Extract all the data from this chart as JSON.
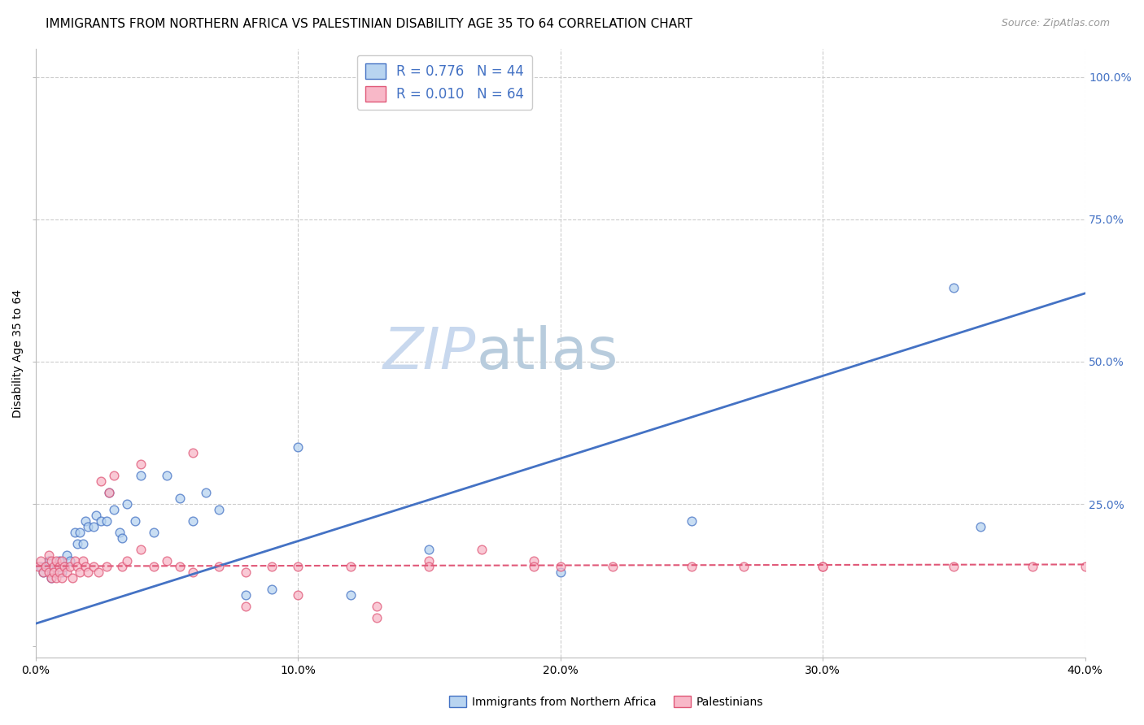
{
  "title": "IMMIGRANTS FROM NORTHERN AFRICA VS PALESTINIAN DISABILITY AGE 35 TO 64 CORRELATION CHART",
  "source": "Source: ZipAtlas.com",
  "ylabel": "Disability Age 35 to 64",
  "xlim": [
    0.0,
    0.4
  ],
  "ylim": [
    -0.02,
    1.05
  ],
  "xticks": [
    0.0,
    0.1,
    0.2,
    0.3,
    0.4
  ],
  "yticks": [
    0.0,
    0.25,
    0.5,
    0.75,
    1.0
  ],
  "xtick_labels": [
    "0.0%",
    "10.0%",
    "20.0%",
    "30.0%",
    "40.0%"
  ],
  "ytick_labels": [
    "",
    "25.0%",
    "50.0%",
    "75.0%",
    "100.0%"
  ],
  "watermark_zip": "ZIP",
  "watermark_atlas": "atlas",
  "series1_label": "Immigrants from Northern Africa",
  "series1_face_color": "#b8d4f0",
  "series1_edge_color": "#4472c4",
  "series1_line_color": "#4472c4",
  "series1_R": "0.776",
  "series1_N": "44",
  "series2_label": "Palestinians",
  "series2_face_color": "#f8b8c8",
  "series2_edge_color": "#e05878",
  "series2_line_color": "#e05878",
  "series2_R": "0.010",
  "series2_N": "64",
  "blue_x": [
    0.002,
    0.003,
    0.004,
    0.005,
    0.006,
    0.007,
    0.008,
    0.009,
    0.01,
    0.011,
    0.012,
    0.013,
    0.015,
    0.016,
    0.017,
    0.018,
    0.019,
    0.02,
    0.022,
    0.023,
    0.025,
    0.027,
    0.028,
    0.03,
    0.032,
    0.033,
    0.035,
    0.038,
    0.04,
    0.045,
    0.05,
    0.055,
    0.06,
    0.065,
    0.07,
    0.08,
    0.09,
    0.1,
    0.12,
    0.15,
    0.2,
    0.25,
    0.35,
    0.36
  ],
  "blue_y": [
    0.14,
    0.13,
    0.14,
    0.15,
    0.12,
    0.13,
    0.14,
    0.15,
    0.13,
    0.14,
    0.16,
    0.15,
    0.2,
    0.18,
    0.2,
    0.18,
    0.22,
    0.21,
    0.21,
    0.23,
    0.22,
    0.22,
    0.27,
    0.24,
    0.2,
    0.19,
    0.25,
    0.22,
    0.3,
    0.2,
    0.3,
    0.26,
    0.22,
    0.27,
    0.24,
    0.09,
    0.1,
    0.35,
    0.09,
    0.17,
    0.13,
    0.22,
    0.63,
    0.21
  ],
  "pink_x": [
    0.001,
    0.002,
    0.003,
    0.004,
    0.005,
    0.005,
    0.006,
    0.006,
    0.007,
    0.007,
    0.008,
    0.008,
    0.009,
    0.009,
    0.01,
    0.01,
    0.011,
    0.012,
    0.013,
    0.014,
    0.015,
    0.016,
    0.017,
    0.018,
    0.019,
    0.02,
    0.022,
    0.024,
    0.025,
    0.027,
    0.028,
    0.03,
    0.033,
    0.035,
    0.04,
    0.045,
    0.05,
    0.055,
    0.06,
    0.07,
    0.08,
    0.09,
    0.1,
    0.12,
    0.15,
    0.17,
    0.19,
    0.2,
    0.22,
    0.25,
    0.27,
    0.3,
    0.3,
    0.35,
    0.38,
    0.4,
    0.15,
    0.19,
    0.13,
    0.04,
    0.06,
    0.08,
    0.1,
    0.13
  ],
  "pink_y": [
    0.14,
    0.15,
    0.13,
    0.14,
    0.16,
    0.13,
    0.15,
    0.12,
    0.14,
    0.13,
    0.15,
    0.12,
    0.14,
    0.13,
    0.15,
    0.12,
    0.14,
    0.13,
    0.14,
    0.12,
    0.15,
    0.14,
    0.13,
    0.15,
    0.14,
    0.13,
    0.14,
    0.13,
    0.29,
    0.14,
    0.27,
    0.3,
    0.14,
    0.15,
    0.17,
    0.14,
    0.15,
    0.14,
    0.13,
    0.14,
    0.13,
    0.14,
    0.14,
    0.14,
    0.15,
    0.17,
    0.15,
    0.14,
    0.14,
    0.14,
    0.14,
    0.14,
    0.14,
    0.14,
    0.14,
    0.14,
    0.14,
    0.14,
    0.05,
    0.32,
    0.34,
    0.07,
    0.09,
    0.07
  ],
  "blue_trend_x": [
    0.0,
    0.4
  ],
  "blue_trend_y": [
    0.04,
    0.62
  ],
  "pink_trend_x": [
    0.0,
    0.4
  ],
  "pink_trend_y": [
    0.141,
    0.144
  ],
  "background_color": "#ffffff",
  "grid_color": "#cccccc",
  "title_fontsize": 11,
  "axis_label_fontsize": 10,
  "tick_fontsize": 10,
  "scatter_size": 60,
  "scatter_alpha": 0.75,
  "scatter_linewidth": 1.0,
  "axis_label_color_right": "#4472c4"
}
